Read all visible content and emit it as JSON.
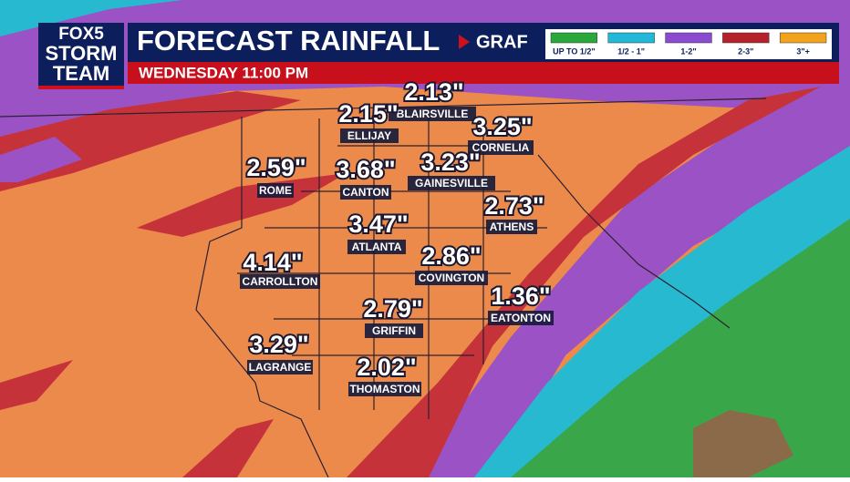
{
  "header": {
    "logo": [
      "FOX5",
      "STORM",
      "TEAM"
    ],
    "title": "FORECAST RAINFALL",
    "model": "GRAF",
    "subtitle": "WEDNESDAY 11:00 PM"
  },
  "legend": [
    {
      "label": "UP TO 1/2\"",
      "color": "#2ba83c"
    },
    {
      "label": "1/2 - 1\"",
      "color": "#22b8d8"
    },
    {
      "label": "1-2\"",
      "color": "#8a4bd0"
    },
    {
      "label": "2-3\"",
      "color": "#b5222a"
    },
    {
      "label": "3\"+",
      "color": "#f2a31c"
    }
  ],
  "cities": [
    {
      "name": "BLAIRSVILLE",
      "amount": "2.13\""
    },
    {
      "name": "ELLIJAY",
      "amount": "2.15\""
    },
    {
      "name": "CORNELIA",
      "amount": "3.25\""
    },
    {
      "name": "ROME",
      "amount": "2.59\""
    },
    {
      "name": "CANTON",
      "amount": "3.68\""
    },
    {
      "name": "GAINESVILLE",
      "amount": "3.23\""
    },
    {
      "name": "ATHENS",
      "amount": "2.73\""
    },
    {
      "name": "ATLANTA",
      "amount": "3.47\""
    },
    {
      "name": "CARROLLTON",
      "amount": "4.14\""
    },
    {
      "name": "COVINGTON",
      "amount": "2.86\""
    },
    {
      "name": "EATONTON",
      "amount": "1.36\""
    },
    {
      "name": "GRIFFIN",
      "amount": "2.79\""
    },
    {
      "name": "LAGRANGE",
      "amount": "3.29\""
    },
    {
      "name": "THOMASTON",
      "amount": "2.02\""
    }
  ]
}
